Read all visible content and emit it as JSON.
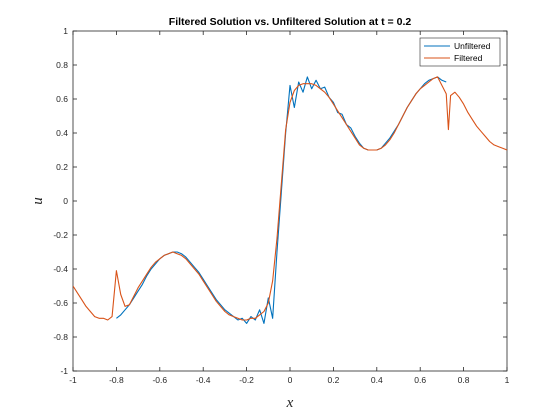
{
  "chart_data": {
    "type": "line",
    "title": "Filtered Solution vs. Unfiltered Solution at t = 0.2",
    "xlabel": "x",
    "ylabel": "u",
    "xlim": [
      -1,
      1
    ],
    "ylim": [
      -1,
      1
    ],
    "xticks": [
      "-1",
      "-0.8",
      "-0.6",
      "-0.4",
      "-0.2",
      "0",
      "0.2",
      "0.4",
      "0.6",
      "0.8",
      "1"
    ],
    "yticks": [
      "-1",
      "-0.8",
      "-0.6",
      "-0.4",
      "-0.2",
      "0",
      "0.2",
      "0.4",
      "0.6",
      "0.8",
      "1"
    ],
    "legend_position": "top-right",
    "series": [
      {
        "name": "Unfiltered",
        "color": "#0072BD",
        "points": [
          [
            -0.8,
            -0.69
          ],
          [
            -0.78,
            -0.67
          ],
          [
            -0.76,
            -0.64
          ],
          [
            -0.74,
            -0.61
          ],
          [
            -0.72,
            -0.57
          ],
          [
            -0.7,
            -0.53
          ],
          [
            -0.68,
            -0.49
          ],
          [
            -0.66,
            -0.44
          ],
          [
            -0.64,
            -0.4
          ],
          [
            -0.62,
            -0.37
          ],
          [
            -0.6,
            -0.34
          ],
          [
            -0.58,
            -0.32
          ],
          [
            -0.56,
            -0.31
          ],
          [
            -0.54,
            -0.3
          ],
          [
            -0.52,
            -0.3
          ],
          [
            -0.5,
            -0.31
          ],
          [
            -0.48,
            -0.33
          ],
          [
            -0.46,
            -0.36
          ],
          [
            -0.44,
            -0.39
          ],
          [
            -0.42,
            -0.42
          ],
          [
            -0.4,
            -0.46
          ],
          [
            -0.38,
            -0.5
          ],
          [
            -0.36,
            -0.54
          ],
          [
            -0.34,
            -0.58
          ],
          [
            -0.32,
            -0.61
          ],
          [
            -0.3,
            -0.64
          ],
          [
            -0.28,
            -0.66
          ],
          [
            -0.26,
            -0.68
          ],
          [
            -0.24,
            -0.7
          ],
          [
            -0.22,
            -0.69
          ],
          [
            -0.2,
            -0.72
          ],
          [
            -0.18,
            -0.68
          ],
          [
            -0.16,
            -0.7
          ],
          [
            -0.14,
            -0.64
          ],
          [
            -0.12,
            -0.72
          ],
          [
            -0.1,
            -0.57
          ],
          [
            -0.08,
            -0.69
          ],
          [
            -0.06,
            -0.3
          ],
          [
            -0.04,
            0.05
          ],
          [
            -0.02,
            0.4
          ],
          [
            0.0,
            0.68
          ],
          [
            0.02,
            0.55
          ],
          [
            0.04,
            0.7
          ],
          [
            0.06,
            0.64
          ],
          [
            0.08,
            0.73
          ],
          [
            0.1,
            0.66
          ],
          [
            0.12,
            0.71
          ],
          [
            0.14,
            0.66
          ],
          [
            0.16,
            0.67
          ],
          [
            0.18,
            0.61
          ],
          [
            0.2,
            0.58
          ],
          [
            0.22,
            0.52
          ],
          [
            0.24,
            0.51
          ],
          [
            0.26,
            0.45
          ],
          [
            0.28,
            0.43
          ],
          [
            0.3,
            0.38
          ],
          [
            0.32,
            0.34
          ],
          [
            0.34,
            0.31
          ],
          [
            0.36,
            0.3
          ],
          [
            0.38,
            0.3
          ],
          [
            0.4,
            0.3
          ],
          [
            0.42,
            0.31
          ],
          [
            0.44,
            0.34
          ],
          [
            0.46,
            0.37
          ],
          [
            0.48,
            0.41
          ],
          [
            0.5,
            0.45
          ],
          [
            0.52,
            0.5
          ],
          [
            0.54,
            0.55
          ],
          [
            0.56,
            0.59
          ],
          [
            0.58,
            0.63
          ],
          [
            0.6,
            0.66
          ],
          [
            0.62,
            0.69
          ],
          [
            0.64,
            0.71
          ],
          [
            0.66,
            0.72
          ],
          [
            0.68,
            0.73
          ],
          [
            0.7,
            0.71
          ],
          [
            0.72,
            0.7
          ]
        ]
      },
      {
        "name": "Filtered",
        "color": "#D95319",
        "points": [
          [
            -1.0,
            -0.5
          ],
          [
            -0.98,
            -0.54
          ],
          [
            -0.96,
            -0.58
          ],
          [
            -0.94,
            -0.62
          ],
          [
            -0.92,
            -0.65
          ],
          [
            -0.9,
            -0.68
          ],
          [
            -0.88,
            -0.69
          ],
          [
            -0.86,
            -0.69
          ],
          [
            -0.84,
            -0.7
          ],
          [
            -0.82,
            -0.68
          ],
          [
            -0.8,
            -0.41
          ],
          [
            -0.78,
            -0.55
          ],
          [
            -0.76,
            -0.62
          ],
          [
            -0.74,
            -0.61
          ],
          [
            -0.72,
            -0.56
          ],
          [
            -0.7,
            -0.51
          ],
          [
            -0.68,
            -0.47
          ],
          [
            -0.66,
            -0.43
          ],
          [
            -0.64,
            -0.39
          ],
          [
            -0.62,
            -0.36
          ],
          [
            -0.6,
            -0.34
          ],
          [
            -0.58,
            -0.32
          ],
          [
            -0.56,
            -0.31
          ],
          [
            -0.54,
            -0.3
          ],
          [
            -0.52,
            -0.31
          ],
          [
            -0.5,
            -0.32
          ],
          [
            -0.48,
            -0.34
          ],
          [
            -0.46,
            -0.37
          ],
          [
            -0.44,
            -0.4
          ],
          [
            -0.42,
            -0.43
          ],
          [
            -0.4,
            -0.47
          ],
          [
            -0.38,
            -0.51
          ],
          [
            -0.36,
            -0.55
          ],
          [
            -0.34,
            -0.59
          ],
          [
            -0.32,
            -0.62
          ],
          [
            -0.3,
            -0.65
          ],
          [
            -0.28,
            -0.67
          ],
          [
            -0.26,
            -0.68
          ],
          [
            -0.24,
            -0.69
          ],
          [
            -0.22,
            -0.7
          ],
          [
            -0.2,
            -0.7
          ],
          [
            -0.18,
            -0.69
          ],
          [
            -0.16,
            -0.69
          ],
          [
            -0.14,
            -0.67
          ],
          [
            -0.12,
            -0.65
          ],
          [
            -0.1,
            -0.6
          ],
          [
            -0.08,
            -0.47
          ],
          [
            -0.06,
            -0.22
          ],
          [
            -0.04,
            0.1
          ],
          [
            -0.02,
            0.42
          ],
          [
            0.0,
            0.58
          ],
          [
            0.02,
            0.65
          ],
          [
            0.04,
            0.68
          ],
          [
            0.06,
            0.69
          ],
          [
            0.08,
            0.69
          ],
          [
            0.1,
            0.69
          ],
          [
            0.12,
            0.68
          ],
          [
            0.14,
            0.66
          ],
          [
            0.16,
            0.64
          ],
          [
            0.18,
            0.61
          ],
          [
            0.2,
            0.57
          ],
          [
            0.22,
            0.53
          ],
          [
            0.24,
            0.49
          ],
          [
            0.26,
            0.45
          ],
          [
            0.28,
            0.41
          ],
          [
            0.3,
            0.37
          ],
          [
            0.32,
            0.33
          ],
          [
            0.34,
            0.31
          ],
          [
            0.36,
            0.3
          ],
          [
            0.38,
            0.3
          ],
          [
            0.4,
            0.3
          ],
          [
            0.42,
            0.31
          ],
          [
            0.44,
            0.33
          ],
          [
            0.46,
            0.36
          ],
          [
            0.48,
            0.4
          ],
          [
            0.5,
            0.45
          ],
          [
            0.52,
            0.5
          ],
          [
            0.54,
            0.55
          ],
          [
            0.56,
            0.59
          ],
          [
            0.58,
            0.63
          ],
          [
            0.6,
            0.66
          ],
          [
            0.62,
            0.68
          ],
          [
            0.64,
            0.7
          ],
          [
            0.66,
            0.72
          ],
          [
            0.68,
            0.73
          ],
          [
            0.7,
            0.68
          ],
          [
            0.72,
            0.63
          ],
          [
            0.73,
            0.42
          ],
          [
            0.74,
            0.62
          ],
          [
            0.76,
            0.64
          ],
          [
            0.78,
            0.61
          ],
          [
            0.8,
            0.57
          ],
          [
            0.82,
            0.52
          ],
          [
            0.84,
            0.48
          ],
          [
            0.86,
            0.44
          ],
          [
            0.88,
            0.41
          ],
          [
            0.9,
            0.38
          ],
          [
            0.92,
            0.35
          ],
          [
            0.94,
            0.33
          ],
          [
            0.96,
            0.32
          ],
          [
            0.98,
            0.31
          ],
          [
            1.0,
            0.3
          ]
        ]
      }
    ]
  }
}
